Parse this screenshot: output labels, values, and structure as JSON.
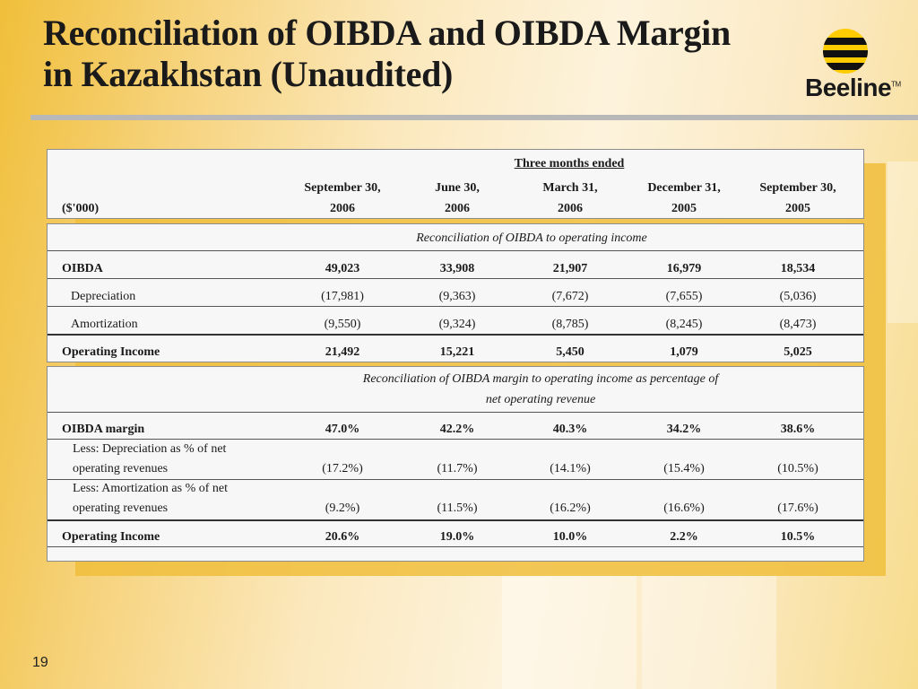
{
  "slide": {
    "title_line1": "Reconciliation of OIBDA and OIBDA Margin",
    "title_line2": "in Kazakhstan (Unaudited)",
    "page_number": "19"
  },
  "logo": {
    "text": "Beeline",
    "tm": "TM"
  },
  "table": {
    "period_header": "Three months ended",
    "unit_label": "($'000)",
    "columns": [
      {
        "line1": "September 30,",
        "line2": "2006"
      },
      {
        "line1": "June 30,",
        "line2": "2006"
      },
      {
        "line1": "March 31,",
        "line2": "2006"
      },
      {
        "line1": "December 31,",
        "line2": "2005"
      },
      {
        "line1": "September 30,",
        "line2": "2005"
      }
    ],
    "section1": {
      "caption": "Reconciliation of OIBDA to operating income",
      "rows": [
        {
          "label": "OIBDA",
          "values": [
            "49,023",
            "33,908",
            "21,907",
            "16,979",
            "18,534"
          ]
        },
        {
          "label": "Depreciation",
          "values": [
            "(17,981)",
            "(9,363)",
            "(7,672)",
            "(7,655)",
            "(5,036)"
          ]
        },
        {
          "label": "Amortization",
          "values": [
            "(9,550)",
            "(9,324)",
            "(8,785)",
            "(8,245)",
            "(8,473)"
          ]
        },
        {
          "label": "Operating Income",
          "values": [
            "21,492",
            "15,221",
            "5,450",
            "1,079",
            "5,025"
          ]
        }
      ]
    },
    "section2": {
      "caption_line1": "Reconciliation of OIBDA margin to operating income as percentage of",
      "caption_line2": "net operating revenue",
      "rows": [
        {
          "label": "OIBDA margin",
          "values": [
            "47.0%",
            "42.2%",
            "40.3%",
            "34.2%",
            "38.6%"
          ]
        },
        {
          "label_line1": "Less: Depreciation as % of net",
          "label_line2": "operating revenues",
          "values": [
            "(17.2%)",
            "(11.7%)",
            "(14.1%)",
            "(15.4%)",
            "(10.5%)"
          ]
        },
        {
          "label_line1": "Less: Amortization as % of net",
          "label_line2": "operating revenues",
          "values": [
            "(9.2%)",
            "(11.5%)",
            "(16.2%)",
            "(16.6%)",
            "(17.6%)"
          ]
        },
        {
          "label": "Operating Income",
          "values": [
            "20.6%",
            "19.0%",
            "10.0%",
            "2.2%",
            "10.5%"
          ]
        }
      ]
    }
  }
}
